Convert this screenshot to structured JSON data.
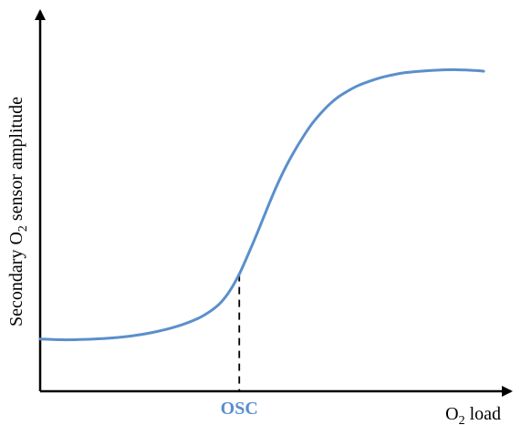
{
  "chart_data": {
    "type": "line",
    "title": "",
    "xlabel": {
      "prefix": "O",
      "subscript": "2",
      "suffix": " load"
    },
    "ylabel": {
      "prefix": "Secondary O",
      "subscript": "2",
      "suffix": " sensor amplitude"
    },
    "xlim": [
      0,
      1
    ],
    "ylim": [
      0,
      1
    ],
    "grid": false,
    "legend": "none",
    "series": [
      {
        "color": "#5B8FCB",
        "x": [
          0.0,
          0.05,
          0.1,
          0.15,
          0.2,
          0.25,
          0.3,
          0.35,
          0.38,
          0.4,
          0.42,
          0.44,
          0.46,
          0.48,
          0.5,
          0.52,
          0.54,
          0.56,
          0.58,
          0.6,
          0.62,
          0.64,
          0.66,
          0.68,
          0.7,
          0.73,
          0.76,
          0.8,
          0.84,
          0.88,
          0.92,
          0.96,
          0.98
        ],
        "y": [
          0.14,
          0.138,
          0.139,
          0.142,
          0.148,
          0.158,
          0.173,
          0.196,
          0.218,
          0.239,
          0.271,
          0.314,
          0.368,
          0.425,
          0.485,
          0.543,
          0.595,
          0.64,
          0.68,
          0.716,
          0.745,
          0.77,
          0.79,
          0.805,
          0.818,
          0.832,
          0.843,
          0.853,
          0.858,
          0.861,
          0.862,
          0.86,
          0.858
        ]
      }
    ],
    "annotations": [
      {
        "label": "OSC",
        "x": 0.44,
        "y": 0.314,
        "style": "dashed-drop-line",
        "color": "#5B8FCB"
      }
    ]
  }
}
